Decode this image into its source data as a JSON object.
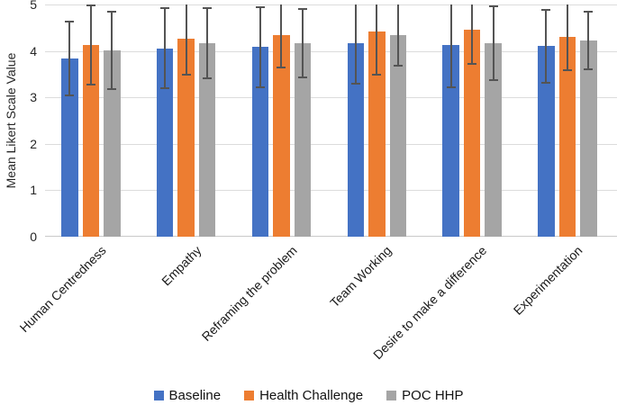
{
  "chart_data": {
    "type": "bar",
    "title": "",
    "xlabel": "",
    "ylabel": "Mean Likert Scale Value",
    "ylim": [
      0,
      5
    ],
    "yticks": [
      0,
      1,
      2,
      3,
      4,
      5
    ],
    "grid": true,
    "legend_position": "bottom",
    "categories": [
      "Human Centredness",
      "Empathy",
      "Reframing the problem",
      "Team Working",
      "Desire to make a difference",
      "Experimentation"
    ],
    "series": [
      {
        "name": "Baseline",
        "color": "#4472C4",
        "values": [
          3.84,
          4.06,
          4.08,
          4.17,
          4.13,
          4.1
        ],
        "errors": [
          0.8,
          0.87,
          0.86,
          0.87,
          0.91,
          0.78
        ]
      },
      {
        "name": "Health Challenge",
        "color": "#ED7D31",
        "values": [
          4.13,
          4.27,
          4.34,
          4.42,
          4.45,
          4.3
        ],
        "errors": [
          0.85,
          0.79,
          0.7,
          0.94,
          0.72,
          0.72
        ]
      },
      {
        "name": "POC HHP",
        "color": "#A5A5A5",
        "values": [
          4.01,
          4.17,
          4.17,
          4.35,
          4.17,
          4.22
        ],
        "errors": [
          0.84,
          0.75,
          0.74,
          0.66,
          0.79,
          0.62
        ]
      }
    ],
    "error_bar_color": "#545454",
    "gridline_color": "#dcdcdc",
    "background_color": "#ffffff"
  }
}
